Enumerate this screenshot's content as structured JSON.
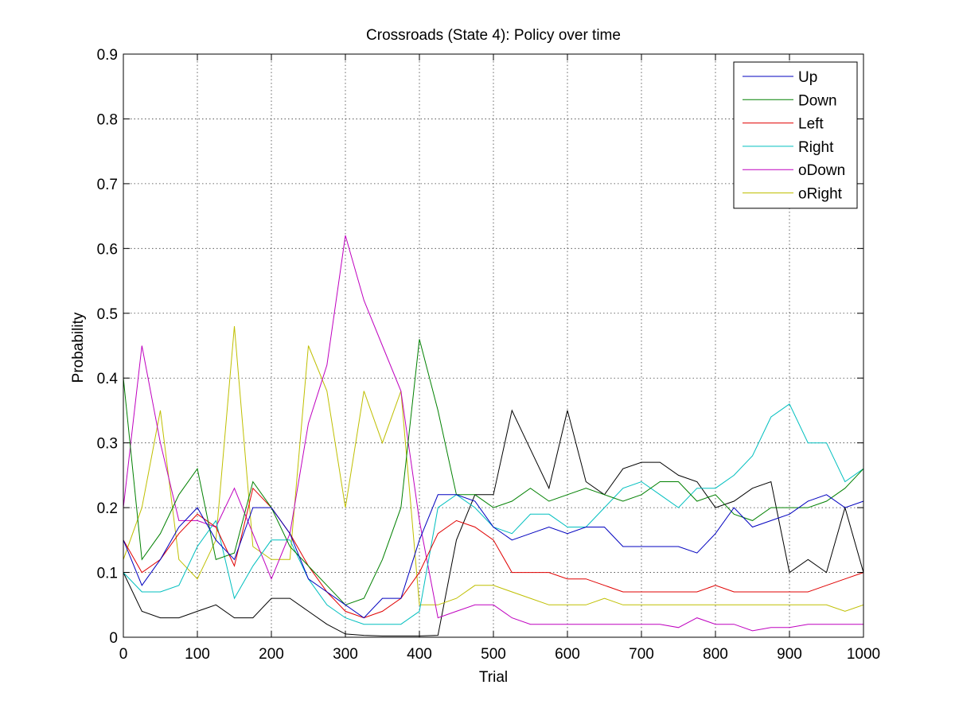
{
  "chart_data": {
    "type": "line",
    "title": "Crossroads (State 4): Policy over time",
    "xlabel": "Trial",
    "ylabel": "Probability",
    "xlim": [
      0,
      1000
    ],
    "ylim": [
      0,
      0.9
    ],
    "xticks": [
      0,
      100,
      200,
      300,
      400,
      500,
      600,
      700,
      800,
      900,
      1000
    ],
    "yticks": [
      0,
      0.1,
      0.2,
      0.3,
      0.4,
      0.5,
      0.6,
      0.7,
      0.8,
      0.9
    ],
    "xtick_labels": [
      "0",
      "100",
      "200",
      "300",
      "400",
      "500",
      "600",
      "700",
      "800",
      "900",
      "1000"
    ],
    "ytick_labels": [
      "0",
      "0.1",
      "0.2",
      "0.3",
      "0.4",
      "0.5",
      "0.6",
      "0.7",
      "0.8",
      "0.9"
    ],
    "grid": true,
    "legend_position": "top-right",
    "x": [
      0,
      25,
      50,
      75,
      100,
      125,
      150,
      175,
      200,
      225,
      250,
      275,
      300,
      325,
      350,
      375,
      400,
      425,
      450,
      475,
      500,
      525,
      550,
      575,
      600,
      625,
      650,
      675,
      700,
      725,
      750,
      775,
      800,
      825,
      850,
      875,
      900,
      925,
      950,
      975,
      1000
    ],
    "series": [
      {
        "name": "Up",
        "color": "#0000bf",
        "values": [
          0.15,
          0.08,
          0.12,
          0.17,
          0.2,
          0.15,
          0.12,
          0.2,
          0.2,
          0.16,
          0.09,
          0.07,
          0.05,
          0.03,
          0.06,
          0.06,
          0.15,
          0.22,
          0.22,
          0.21,
          0.17,
          0.15,
          0.16,
          0.17,
          0.16,
          0.17,
          0.17,
          0.14,
          0.14,
          0.14,
          0.14,
          0.13,
          0.16,
          0.2,
          0.17,
          0.18,
          0.19,
          0.21,
          0.22,
          0.2,
          0.21
        ]
      },
      {
        "name": "Down",
        "color": "#008000",
        "values": [
          0.4,
          0.12,
          0.16,
          0.22,
          0.26,
          0.12,
          0.13,
          0.24,
          0.2,
          0.14,
          0.11,
          0.08,
          0.05,
          0.06,
          0.12,
          0.2,
          0.46,
          0.35,
          0.22,
          0.22,
          0.2,
          0.21,
          0.23,
          0.21,
          0.22,
          0.23,
          0.22,
          0.21,
          0.22,
          0.24,
          0.24,
          0.21,
          0.22,
          0.19,
          0.18,
          0.2,
          0.2,
          0.2,
          0.21,
          0.23,
          0.26
        ]
      },
      {
        "name": "Left",
        "color": "#e00000",
        "values": [
          0.15,
          0.1,
          0.12,
          0.16,
          0.19,
          0.17,
          0.11,
          0.23,
          0.2,
          0.16,
          0.11,
          0.07,
          0.04,
          0.03,
          0.04,
          0.06,
          0.1,
          0.16,
          0.18,
          0.17,
          0.15,
          0.1,
          0.1,
          0.1,
          0.09,
          0.09,
          0.08,
          0.07,
          0.07,
          0.07,
          0.07,
          0.07,
          0.08,
          0.07,
          0.07,
          0.07,
          0.07,
          0.07,
          0.08,
          0.09,
          0.1
        ]
      },
      {
        "name": "Right",
        "color": "#00bfbf",
        "values": [
          0.1,
          0.07,
          0.07,
          0.08,
          0.14,
          0.18,
          0.06,
          0.11,
          0.15,
          0.15,
          0.09,
          0.05,
          0.03,
          0.02,
          0.02,
          0.02,
          0.04,
          0.2,
          0.22,
          0.2,
          0.17,
          0.16,
          0.19,
          0.19,
          0.17,
          0.17,
          0.2,
          0.23,
          0.24,
          0.22,
          0.2,
          0.23,
          0.23,
          0.25,
          0.28,
          0.34,
          0.36,
          0.3,
          0.3,
          0.24,
          0.26
        ]
      },
      {
        "name": "oDown",
        "color": "#bf00bf",
        "values": [
          0.2,
          0.45,
          0.3,
          0.18,
          0.18,
          0.17,
          0.23,
          0.16,
          0.09,
          0.16,
          0.33,
          0.42,
          0.62,
          0.52,
          0.45,
          0.38,
          0.18,
          0.03,
          0.04,
          0.05,
          0.05,
          0.03,
          0.02,
          0.02,
          0.02,
          0.02,
          0.02,
          0.02,
          0.02,
          0.02,
          0.015,
          0.03,
          0.02,
          0.02,
          0.01,
          0.015,
          0.015,
          0.02,
          0.02,
          0.02,
          0.02
        ]
      },
      {
        "name": "oRight",
        "color": "#bfbf00",
        "values": [
          0.12,
          0.2,
          0.35,
          0.12,
          0.09,
          0.15,
          0.48,
          0.14,
          0.12,
          0.12,
          0.45,
          0.38,
          0.2,
          0.38,
          0.3,
          0.38,
          0.05,
          0.05,
          0.06,
          0.08,
          0.08,
          0.07,
          0.06,
          0.05,
          0.05,
          0.05,
          0.06,
          0.05,
          0.05,
          0.05,
          0.05,
          0.05,
          0.05,
          0.05,
          0.05,
          0.05,
          0.05,
          0.05,
          0.05,
          0.04,
          0.05
        ]
      },
      {
        "name": "",
        "color": "#000000",
        "values": [
          0.1,
          0.04,
          0.03,
          0.03,
          0.04,
          0.05,
          0.03,
          0.03,
          0.06,
          0.06,
          0.04,
          0.02,
          0.005,
          0.003,
          0.002,
          0.002,
          0.002,
          0.003,
          0.15,
          0.22,
          0.22,
          0.35,
          0.29,
          0.23,
          0.35,
          0.24,
          0.22,
          0.26,
          0.27,
          0.27,
          0.25,
          0.24,
          0.2,
          0.21,
          0.23,
          0.24,
          0.1,
          0.12,
          0.1,
          0.2,
          0.1
        ]
      }
    ]
  }
}
